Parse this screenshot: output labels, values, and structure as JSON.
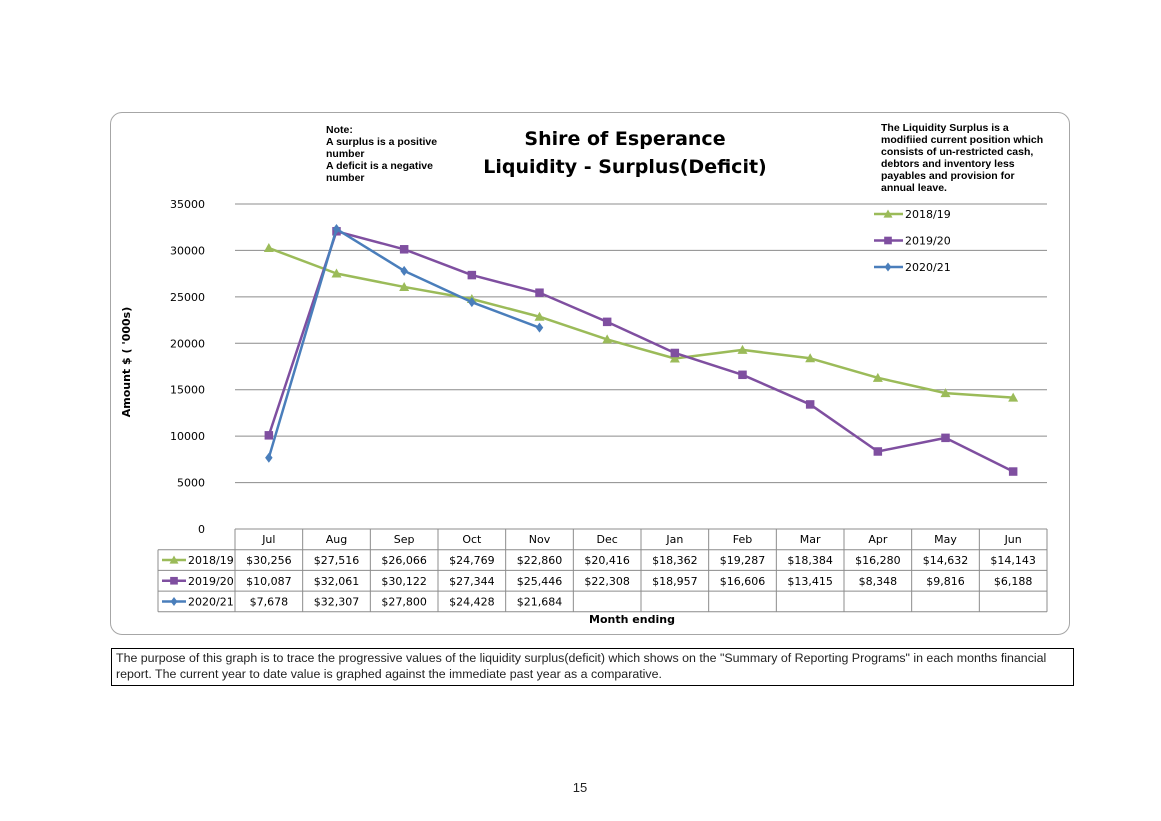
{
  "notes": {
    "left": "Note:\nA surplus is a positive number\nA deficit is a negative number",
    "right": "The Liquidity Surplus is a modifiied current position which consists of  un-restricted cash, debtors and inventory less payables and provision for annual leave."
  },
  "caption": "The purpose of this graph is to trace the progressive values of the liquidity surplus(deficit) which shows on the \"Summary of Reporting Programs\" in each months financial report. The current year to date value is graphed against the immediate past year as a comparative.",
  "page_number": "15",
  "chart_data": {
    "type": "line",
    "title": [
      "Shire of Esperance",
      "Liquidity - Surplus(Deficit)"
    ],
    "xlabel": "Month ending",
    "ylabel": "Amount $ ( '000s)",
    "ylim": [
      0,
      35000
    ],
    "yticks": [
      "0",
      "5000",
      "10000",
      "15000",
      "20000",
      "25000",
      "30000",
      "35000"
    ],
    "grid": true,
    "legend": "top-right",
    "categories": [
      "Jul",
      "Aug",
      "Sep",
      "Oct",
      "Nov",
      "Dec",
      "Jan",
      "Feb",
      "Mar",
      "Apr",
      "May",
      "Jun"
    ],
    "series": [
      {
        "name": "2018/19",
        "color": "#9bbb59",
        "marker": "triangle",
        "values": [
          30256,
          27516,
          26066,
          24769,
          22860,
          20416,
          18362,
          19287,
          18384,
          16280,
          14632,
          14143
        ],
        "labels": [
          "$30,256",
          "$27,516",
          "$26,066",
          "$24,769",
          "$22,860",
          "$20,416",
          "$18,362",
          "$19,287",
          "$18,384",
          "$16,280",
          "$14,632",
          "$14,143"
        ]
      },
      {
        "name": "2019/20",
        "color": "#7f4fa0",
        "marker": "square",
        "values": [
          10087,
          32061,
          30122,
          27344,
          25446,
          22308,
          18957,
          16606,
          13415,
          8348,
          9816,
          6188
        ],
        "labels": [
          "$10,087",
          "$32,061",
          "$30,122",
          "$27,344",
          "$25,446",
          "$22,308",
          "$18,957",
          "$16,606",
          "$13,415",
          "$8,348",
          "$9,816",
          "$6,188"
        ]
      },
      {
        "name": "2020/21",
        "color": "#4a7ebb",
        "marker": "diamond",
        "values": [
          7678,
          32307,
          27800,
          24428,
          21684,
          null,
          null,
          null,
          null,
          null,
          null,
          null
        ],
        "labels": [
          "$7,678",
          "$32,307",
          "$27,800",
          "$24,428",
          "$21,684",
          "",
          "",
          "",
          "",
          "",
          "",
          ""
        ]
      }
    ]
  }
}
